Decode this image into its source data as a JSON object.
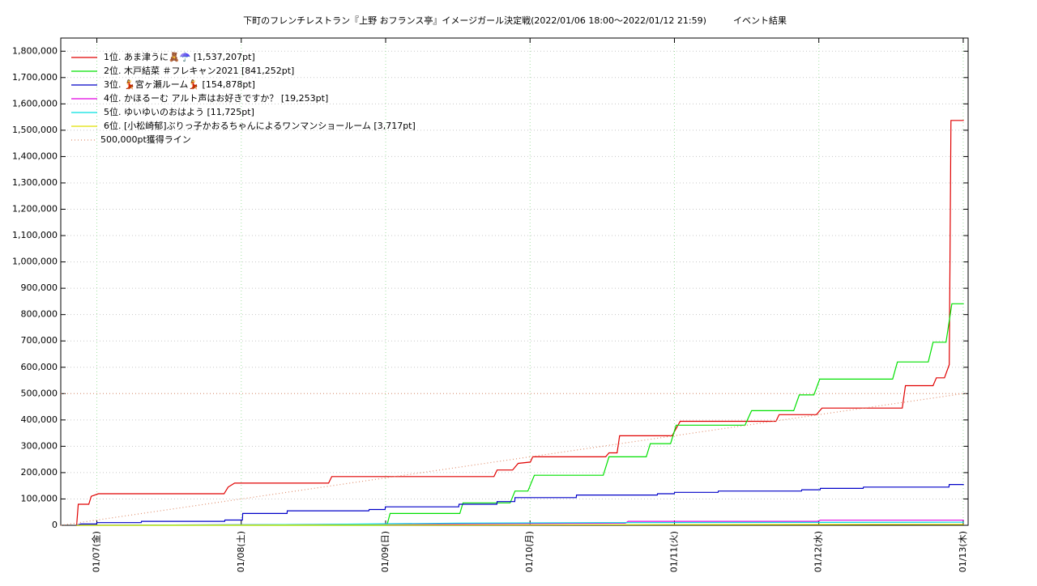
{
  "chart_data": {
    "type": "line",
    "title": "下町のフレンチレストラン『上野 おフランス亭』イメージガール決定戦(2022/01/06 18:00～2022/01/12 21:59)",
    "subtitle": "イベント結果",
    "xlim": [
      6.75,
      13.034
    ],
    "ylim": [
      0,
      1850000
    ],
    "xticks": [
      {
        "value": 7,
        "label": "01/07(金)"
      },
      {
        "value": 8,
        "label": "01/08(土)"
      },
      {
        "value": 9,
        "label": "01/09(日)"
      },
      {
        "value": 10,
        "label": "01/10(月)"
      },
      {
        "value": 11,
        "label": "01/11(火)"
      },
      {
        "value": 12,
        "label": "01/12(水)"
      },
      {
        "value": 13,
        "label": "01/13(木)"
      }
    ],
    "yticks": [
      0,
      {
        "value": 100000,
        "label": "100,000"
      },
      {
        "value": 200000,
        "label": "200,000"
      },
      {
        "value": 300000,
        "label": "300,000"
      },
      {
        "value": 400000,
        "label": "400,000"
      },
      {
        "value": 500000,
        "label": "500,000"
      },
      {
        "value": 600000,
        "label": "600,000"
      },
      {
        "value": 700000,
        "label": "700,000"
      },
      {
        "value": 800000,
        "label": "800,000"
      },
      {
        "value": 900000,
        "label": "900,000"
      },
      {
        "value": 1000000,
        "label": "1,000,000"
      },
      {
        "value": 1100000,
        "label": "1,100,000"
      },
      {
        "value": 1200000,
        "label": "1,200,000"
      },
      {
        "value": 1300000,
        "label": "1,300,000"
      },
      {
        "value": 1400000,
        "label": "1,400,000"
      },
      {
        "value": 1500000,
        "label": "1,500,000"
      },
      {
        "value": 1600000,
        "label": "1,600,000"
      },
      {
        "value": 1700000,
        "label": "1,700,000"
      },
      {
        "value": 1800000,
        "label": "1,800,000"
      }
    ],
    "grid": true,
    "legend": "top-left",
    "series": [
      {
        "name": "1位. あま津うに🧸☂️ [1,537,207pt]",
        "color": "#e00000",
        "x": [
          6.86,
          6.871,
          6.944,
          6.961,
          7.011,
          7.881,
          7.909,
          7.954,
          8.605,
          8.627,
          9.75,
          9.772,
          9.879,
          9.918,
          10.002,
          10.019,
          10.524,
          10.547,
          10.603,
          10.62,
          10.984,
          11.04,
          11.703,
          11.725,
          11.983,
          12.022,
          12.578,
          12.6,
          12.791,
          12.814,
          12.87,
          12.903,
          12.915,
          13.004
        ],
        "values": [
          0,
          80000,
          80000,
          110000,
          120000,
          120000,
          145000,
          160000,
          160000,
          185000,
          185000,
          210000,
          210000,
          235000,
          240000,
          260000,
          260000,
          275000,
          275000,
          340000,
          340000,
          395000,
          395000,
          420000,
          420000,
          445000,
          445000,
          530000,
          530000,
          560000,
          560000,
          610000,
          1537207,
          1537207
        ]
      },
      {
        "name": "2位. 木戸結菜 ＃フレキャン2021 [841,252pt]",
        "color": "#00e000",
        "x": [
          6.86,
          9.009,
          9.031,
          9.514,
          9.536,
          9.862,
          9.896,
          9.985,
          10.03,
          10.507,
          10.547,
          10.805,
          10.833,
          10.973,
          11.012,
          11.489,
          11.534,
          11.826,
          11.865,
          11.966,
          12.006,
          12.511,
          12.544,
          12.758,
          12.791,
          12.881,
          12.921,
          13.004
        ],
        "values": [
          0,
          0,
          45000,
          45000,
          85000,
          85000,
          130000,
          130000,
          190000,
          190000,
          260000,
          260000,
          310000,
          310000,
          380000,
          380000,
          435000,
          435000,
          495000,
          495000,
          555000,
          555000,
          620000,
          620000,
          695000,
          695000,
          841252,
          841252
        ]
      },
      {
        "name": "3位. 💃宮ヶ瀬ルーム💃 [154,878pt]",
        "color": "#0000c8",
        "x": [
          6.86,
          6.888,
          6.998,
          7.0,
          7.307,
          7.309,
          7.885,
          7.887,
          8.008,
          8.01,
          8.317,
          8.319,
          8.884,
          8.886,
          8.996,
          8.998,
          9.506,
          9.508,
          9.77,
          9.772,
          9.894,
          9.896,
          10.32,
          10.322,
          10.881,
          10.883,
          10.999,
          11.001,
          11.302,
          11.304,
          11.88,
          11.882,
          12.009,
          12.011,
          12.307,
          12.309,
          12.901,
          12.903,
          13.004
        ],
        "values": [
          0,
          5000,
          5000,
          10000,
          10000,
          15000,
          15000,
          20000,
          20000,
          45000,
          45000,
          55000,
          55000,
          60000,
          60000,
          70000,
          70000,
          80000,
          80000,
          90000,
          90000,
          105000,
          105000,
          115000,
          115000,
          120000,
          120000,
          125000,
          125000,
          130000,
          130000,
          135000,
          135000,
          140000,
          140000,
          145000,
          145000,
          154878,
          154878
        ]
      },
      {
        "name": "4位. かほるーむ アルト声はお好きですか？ [19,253pt]",
        "color": "#e000e0",
        "x": [
          6.86,
          8.5,
          10.66,
          10.68,
          11.99,
          12.01,
          13.004
        ],
        "values": [
          0,
          3000,
          8000,
          15000,
          15000,
          19253,
          19253
        ]
      },
      {
        "name": "5位. ゆいゆいのおはよう [11,725pt]",
        "color": "#00e0e0",
        "x": [
          6.86,
          8.5,
          9.5,
          10.5,
          12.9,
          13.004
        ],
        "values": [
          0,
          3000,
          8000,
          10000,
          11725,
          11725
        ]
      },
      {
        "name": "6位. [小松崎郁]ぶりっ子かおるちゃんによるワンマンショールーム [3,717pt]",
        "color": "#e0e000",
        "x": [
          6.86,
          9.0,
          11.0,
          12.9,
          13.004
        ],
        "values": [
          0,
          1000,
          2500,
          3717,
          3717
        ]
      },
      {
        "name": "500,000pt獲得ライン",
        "color": "#e09070",
        "dash": true,
        "hline": 500000,
        "x": [
          6.75,
          13.0
        ],
        "values": [
          0,
          500000
        ]
      }
    ]
  }
}
